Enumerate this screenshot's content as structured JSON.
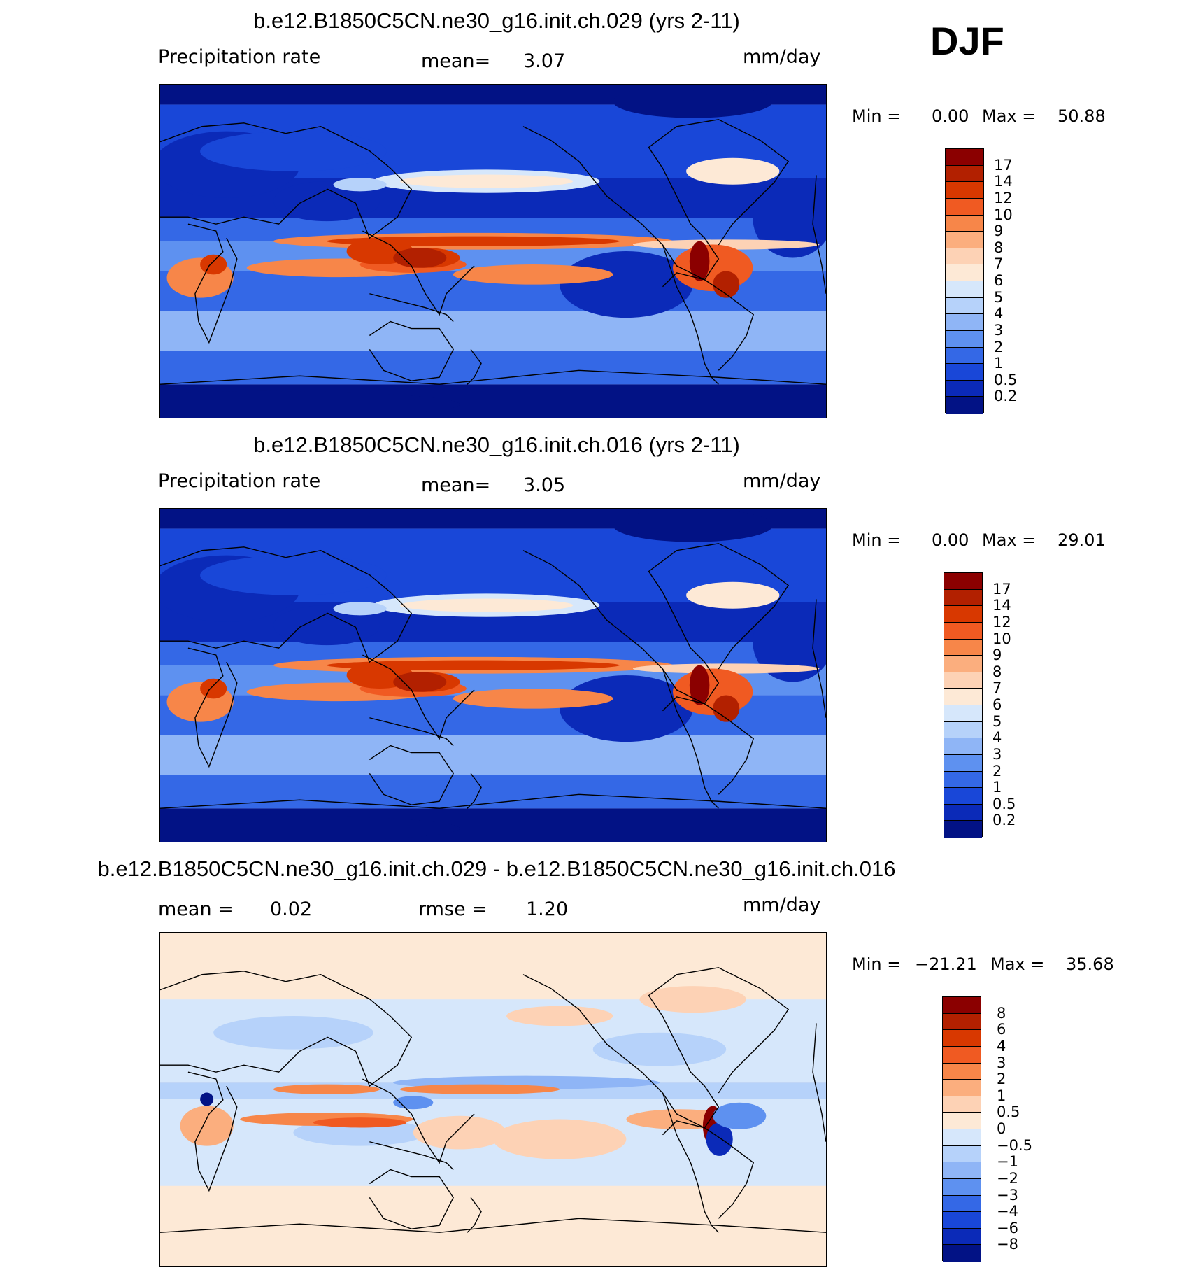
{
  "season": "DJF",
  "chart_data": [
    {
      "type": "heatmap",
      "title": "b.e12.B1850C5CN.ne30_g16.init.ch.029 (yrs 2-11)",
      "variable": "Precipitation rate",
      "stat1_label": "mean=",
      "stat1_value": "3.07",
      "stat2_label": "",
      "stat2_value": "",
      "units": "mm/day",
      "min_label": "Min =",
      "min_value": "0.00",
      "max_label": "Max =",
      "max_value": "50.88",
      "levels": [
        "17",
        "14",
        "12",
        "10",
        "9",
        "8",
        "7",
        "6",
        "5",
        "4",
        "3",
        "2",
        "1",
        "0.5",
        "0.2"
      ],
      "colors": [
        "#8b0000",
        "#b22000",
        "#d83800",
        "#f05a22",
        "#f78649",
        "#fbae7e",
        "#fdd2b5",
        "#fde9d6",
        "#d6e7fb",
        "#b6d2fa",
        "#8fb5f6",
        "#5e91f0",
        "#3468e6",
        "#1947d8",
        "#0b2ab8",
        "#021285"
      ]
    },
    {
      "type": "heatmap",
      "title": "b.e12.B1850C5CN.ne30_g16.init.ch.016 (yrs 2-11)",
      "variable": "Precipitation rate",
      "stat1_label": "mean=",
      "stat1_value": "3.05",
      "stat2_label": "",
      "stat2_value": "",
      "units": "mm/day",
      "min_label": "Min =",
      "min_value": "0.00",
      "max_label": "Max =",
      "max_value": "29.01",
      "levels": [
        "17",
        "14",
        "12",
        "10",
        "9",
        "8",
        "7",
        "6",
        "5",
        "4",
        "3",
        "2",
        "1",
        "0.5",
        "0.2"
      ],
      "colors": [
        "#8b0000",
        "#b22000",
        "#d83800",
        "#f05a22",
        "#f78649",
        "#fbae7e",
        "#fdd2b5",
        "#fde9d6",
        "#d6e7fb",
        "#b6d2fa",
        "#8fb5f6",
        "#5e91f0",
        "#3468e6",
        "#1947d8",
        "#0b2ab8",
        "#021285"
      ]
    },
    {
      "type": "heatmap",
      "title": "b.e12.B1850C5CN.ne30_g16.init.ch.029 - b.e12.B1850C5CN.ne30_g16.init.ch.016",
      "variable": "",
      "stat1_label": "mean =",
      "stat1_value": "0.02",
      "stat2_label": "rmse =",
      "stat2_value": "1.20",
      "units": "mm/day",
      "min_label": "Min =",
      "min_value": "−21.21",
      "max_label": "Max =",
      "max_value": "35.68",
      "levels": [
        "8",
        "6",
        "4",
        "3",
        "2",
        "1",
        "0.5",
        "0",
        "−0.5",
        "−1",
        "−2",
        "−3",
        "−4",
        "−6",
        "−8"
      ],
      "colors": [
        "#8b0000",
        "#b22000",
        "#d83800",
        "#f05a22",
        "#f78649",
        "#fbae7e",
        "#fdd2b5",
        "#fde9d6",
        "#d6e7fb",
        "#b6d2fa",
        "#8fb5f6",
        "#5e91f0",
        "#3468e6",
        "#1947d8",
        "#0b2ab8",
        "#021285"
      ]
    }
  ]
}
